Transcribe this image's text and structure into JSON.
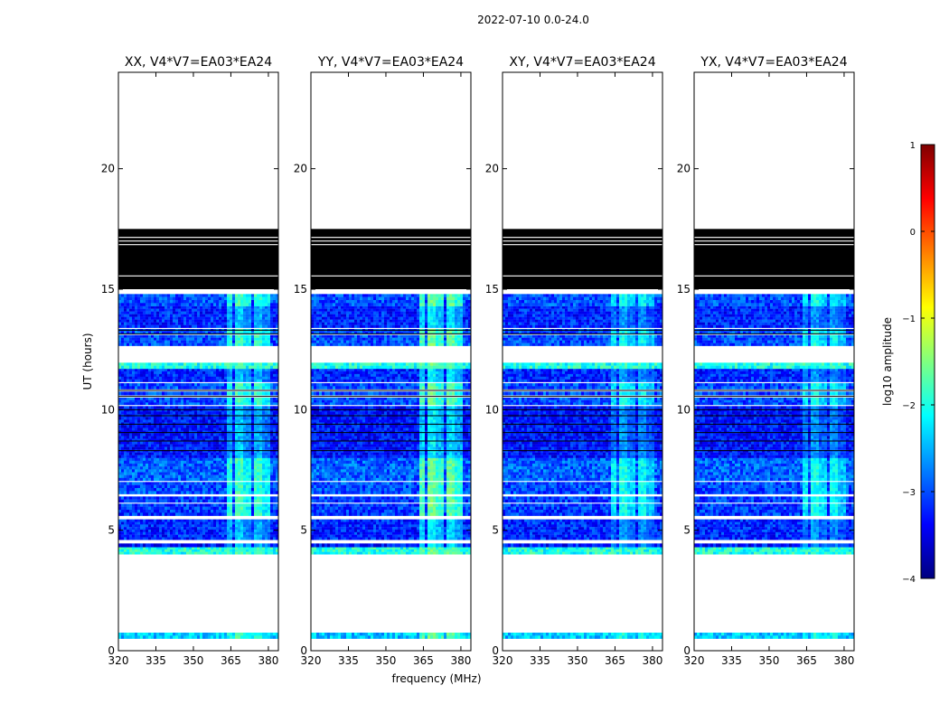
{
  "figure": {
    "suptitle": "2022-07-10 0.0-24.0",
    "xlabel": "frequency (MHz)",
    "ylabel": "UT (hours)"
  },
  "chart_data": {
    "type": "heatmap",
    "title": "2022-07-10 0.0-24.0",
    "xlabel": "frequency (MHz)",
    "ylabel": "UT (hours)",
    "xlim": [
      320,
      384
    ],
    "ylim": [
      0,
      24
    ],
    "xticks": [
      320,
      335,
      350,
      365,
      380
    ],
    "yticks": [
      0,
      5,
      10,
      15,
      20
    ],
    "panels": [
      {
        "title": "XX, V4*V7=EA03*EA24",
        "brightness": 1.0
      },
      {
        "title": "YY, V4*V7=EA03*EA24",
        "brightness": 1.15
      },
      {
        "title": "XY, V4*V7=EA03*EA24",
        "brightness": 0.85
      },
      {
        "title": "YX, V4*V7=EA03*EA24",
        "brightness": 0.85
      }
    ],
    "colorbar": {
      "label": "log10 amplitude",
      "colormap": "jet",
      "vmin": -4,
      "vmax": 1,
      "ticks": [
        1,
        0,
        -1,
        -2,
        -3,
        -4
      ]
    },
    "data_bands_ut": [
      {
        "start": 0.5,
        "end": 0.75,
        "level": -2.4
      },
      {
        "start": 4.0,
        "end": 4.3,
        "level": -2.0
      },
      {
        "start": 4.3,
        "end": 4.45,
        "level": -3.3
      },
      {
        "start": 4.6,
        "end": 5.45,
        "level": -3.2
      },
      {
        "start": 5.6,
        "end": 6.1,
        "level": -3.1
      },
      {
        "start": 6.15,
        "end": 6.4,
        "level": -3.1
      },
      {
        "start": 6.5,
        "end": 7.0,
        "level": -3.0
      },
      {
        "start": 7.05,
        "end": 8.0,
        "level": -2.9
      },
      {
        "start": 8.0,
        "end": 10.15,
        "level": -3.3
      },
      {
        "start": 10.2,
        "end": 10.5,
        "level": -3.0
      },
      {
        "start": 10.6,
        "end": 10.75,
        "level": -3.0
      },
      {
        "start": 10.85,
        "end": 11.1,
        "level": -3.0
      },
      {
        "start": 11.15,
        "end": 11.7,
        "level": -3.2
      },
      {
        "start": 11.7,
        "end": 11.95,
        "level": -2.0
      },
      {
        "start": 12.65,
        "end": 13.1,
        "level": -3.0
      },
      {
        "start": 13.15,
        "end": 13.35,
        "level": -3.0
      },
      {
        "start": 13.4,
        "end": 14.3,
        "level": -3.2
      },
      {
        "start": 14.3,
        "end": 14.8,
        "level": -3.0
      }
    ],
    "flagged_black_ut": [
      15.0,
      17.5
    ],
    "rfi_channels_mhz": [
      {
        "start": 363,
        "end": 366,
        "level": -2.0
      },
      {
        "start": 366.5,
        "end": 369.5,
        "level": -1.8
      },
      {
        "start": 370,
        "end": 373,
        "level": -2.1
      },
      {
        "start": 374,
        "end": 377,
        "level": -1.9
      },
      {
        "start": 378,
        "end": 380.5,
        "level": -2.2
      }
    ]
  }
}
